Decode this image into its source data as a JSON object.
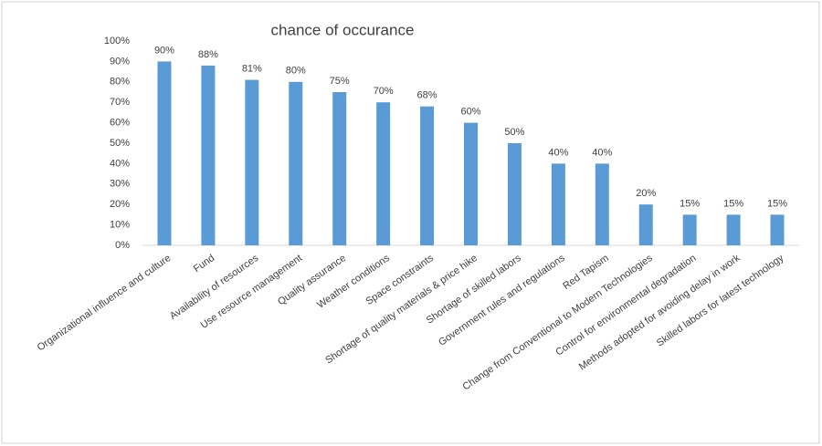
{
  "chart_data": {
    "type": "bar",
    "title": "chance of occurance",
    "categories": [
      "Organizational influence and culture",
      "Fund",
      "Availability of resources",
      "Use resource management",
      "Quality  assurance",
      "Weather conditions",
      "Space constraints",
      "Shortage of quality materials & price hike",
      "Shortage of skilled labors",
      "Government rules and regulations",
      "Red Tapism",
      "Change from Conventional to Modern Technologies",
      "Control for environmental degradation",
      "Methods adopted for avoiding delay in work",
      "Skilled labors for latest technology"
    ],
    "values": [
      90,
      88,
      81,
      80,
      75,
      70,
      68,
      60,
      50,
      40,
      40,
      20,
      15,
      15,
      15
    ],
    "value_labels": [
      "90%",
      "88%",
      "81%",
      "80%",
      "75%",
      "70%",
      "68%",
      "60%",
      "50%",
      "40%",
      "40%",
      "20%",
      "15%",
      "15%",
      "15%"
    ],
    "color": "#5b9bd5",
    "ylim": [
      0,
      100
    ],
    "yticks": [
      {
        "value": 0,
        "label": "0%"
      },
      {
        "value": 10,
        "label": "10%"
      },
      {
        "value": 20,
        "label": "20%"
      },
      {
        "value": 30,
        "label": "30%"
      },
      {
        "value": 40,
        "label": "40%"
      },
      {
        "value": 50,
        "label": "50%"
      },
      {
        "value": 60,
        "label": "60%"
      },
      {
        "value": 70,
        "label": "70%"
      },
      {
        "value": 80,
        "label": "80%"
      },
      {
        "value": 90,
        "label": "90%"
      },
      {
        "value": 100,
        "label": "100%"
      }
    ],
    "grid": false
  }
}
